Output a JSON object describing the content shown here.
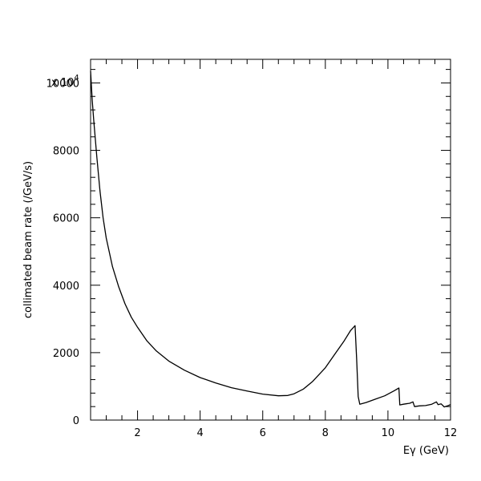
{
  "chart_data": {
    "type": "line",
    "xlabel": "Eγ (GeV)",
    "ylabel": "collimated beam rate (/GeV/s)",
    "y_multiplier": "x 10",
    "y_multiplier_exponent": "4",
    "xlim": [
      0.5,
      12
    ],
    "ylim": [
      0,
      10700
    ],
    "x_major_ticks": [
      2,
      4,
      6,
      8,
      10,
      12
    ],
    "x_tick_labels": [
      "2",
      "4",
      "6",
      "8",
      "10",
      "12"
    ],
    "y_major_ticks": [
      0,
      2000,
      4000,
      6000,
      8000,
      10000
    ],
    "y_tick_labels": [
      "0",
      "2000",
      "4000",
      "6000",
      "8000",
      "10000"
    ],
    "grid": false,
    "series": [
      {
        "x": [
          0.5,
          0.55,
          0.6,
          0.7,
          0.8,
          0.9,
          1.0,
          1.2,
          1.4,
          1.6,
          1.8,
          2.0,
          2.3,
          2.6,
          3.0,
          3.5,
          4.0,
          4.5,
          5.0,
          5.5,
          6.0,
          6.5,
          6.8,
          7.0,
          7.3,
          7.6,
          8.0,
          8.3,
          8.6,
          8.8,
          8.95,
          9.0,
          9.05,
          9.1,
          9.3,
          9.6,
          9.9,
          10.2,
          10.35,
          10.38,
          10.5,
          10.7,
          10.8,
          10.85,
          11.0,
          11.2,
          11.4,
          11.55,
          11.6,
          11.7,
          11.8,
          11.9,
          12.0
        ],
        "y": [
          10350,
          9500,
          8900,
          7800,
          6800,
          6000,
          5400,
          4550,
          3950,
          3450,
          3050,
          2750,
          2350,
          2050,
          1750,
          1480,
          1260,
          1100,
          960,
          860,
          770,
          720,
          730,
          780,
          920,
          1150,
          1550,
          1950,
          2350,
          2650,
          2800,
          1800,
          700,
          470,
          520,
          620,
          720,
          870,
          950,
          450,
          470,
          500,
          540,
          400,
          420,
          430,
          470,
          540,
          460,
          480,
          390,
          420,
          460
        ]
      }
    ]
  }
}
